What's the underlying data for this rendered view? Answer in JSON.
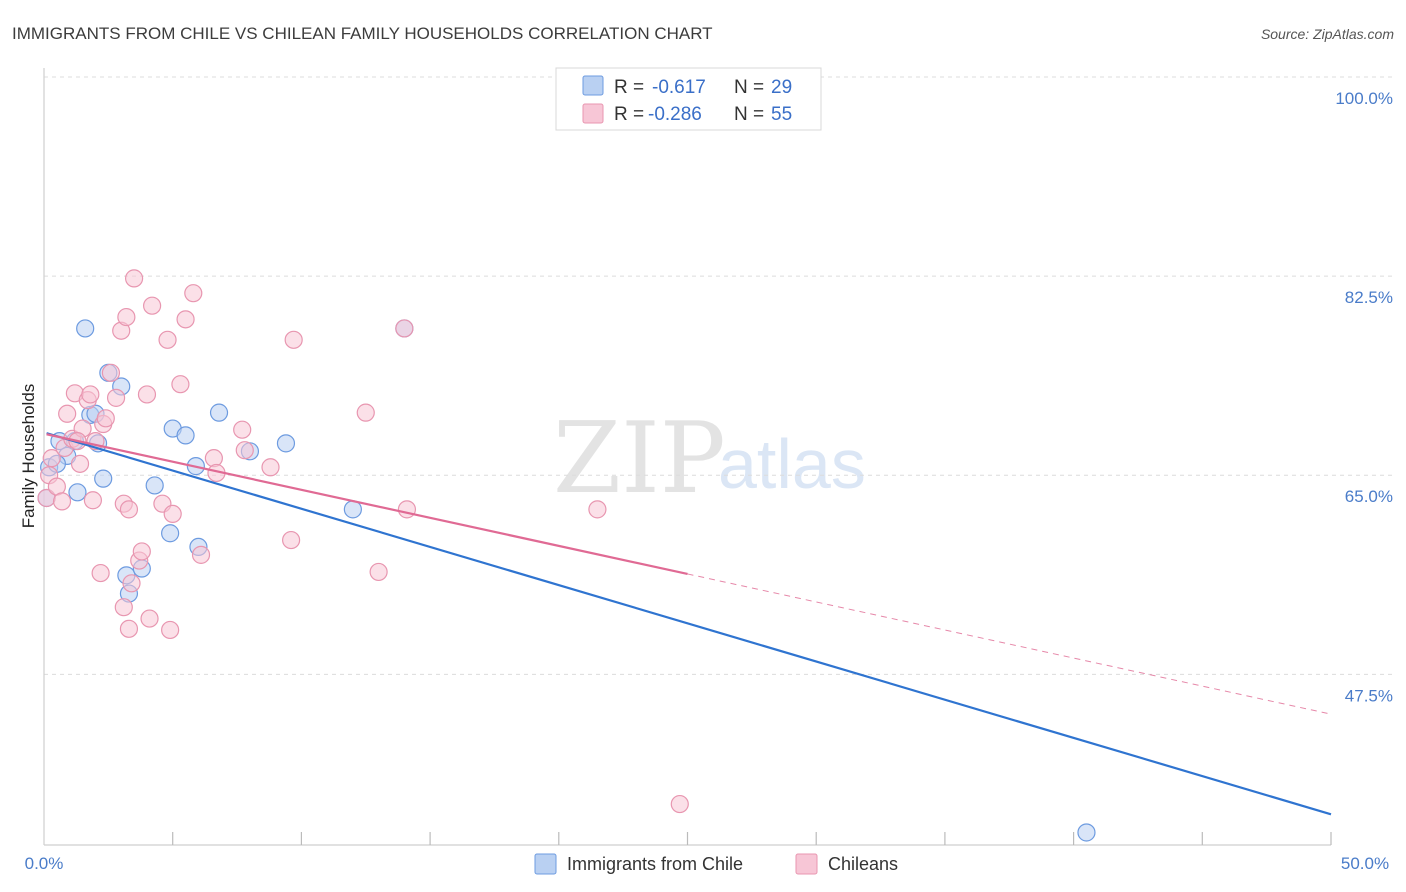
{
  "chart_data": {
    "type": "scatter",
    "title": "IMMIGRANTS FROM CHILE VS CHILEAN FAMILY HOUSEHOLDS CORRELATION CHART",
    "source": "Source: ZipAtlas.com",
    "xlabel": "",
    "ylabel": "Family Households",
    "xlim": [
      0,
      50
    ],
    "ylim": [
      32.5,
      100
    ],
    "x_tick_labels": [
      "0.0%",
      "50.0%"
    ],
    "y_ticks": [
      {
        "value": 100.0,
        "label": "100.0%"
      },
      {
        "value": 82.5,
        "label": "82.5%"
      },
      {
        "value": 65.0,
        "label": "65.0%"
      },
      {
        "value": 47.5,
        "label": "47.5%"
      }
    ],
    "watermark": {
      "zip": "ZIP",
      "atlas": "atlas"
    },
    "series": [
      {
        "name": "Immigrants from Chile",
        "color": "#6d9be0",
        "fill": "#b9d0f2",
        "line_color": "#2f74d0",
        "R_label": "R =",
        "R": "-0.617",
        "N_label": "N =",
        "N": "29",
        "trend": {
          "x0": 0.1,
          "y0": 68.7,
          "x1": 50.0,
          "y1": 35.2,
          "dash_from": null
        },
        "points": [
          [
            0.2,
            65.7
          ],
          [
            0.6,
            68.0
          ],
          [
            0.9,
            66.7
          ],
          [
            1.2,
            68.0
          ],
          [
            1.3,
            63.5
          ],
          [
            1.6,
            77.9
          ],
          [
            1.8,
            70.3
          ],
          [
            2.0,
            70.4
          ],
          [
            2.1,
            67.8
          ],
          [
            2.3,
            64.7
          ],
          [
            2.5,
            74.0
          ],
          [
            3.0,
            72.8
          ],
          [
            3.2,
            56.2
          ],
          [
            3.3,
            54.6
          ],
          [
            3.8,
            56.8
          ],
          [
            4.3,
            64.1
          ],
          [
            4.9,
            59.9
          ],
          [
            5.0,
            69.1
          ],
          [
            5.5,
            68.5
          ],
          [
            5.9,
            65.8
          ],
          [
            6.0,
            58.7
          ],
          [
            6.8,
            70.5
          ],
          [
            8.0,
            67.1
          ],
          [
            9.4,
            67.8
          ],
          [
            12.0,
            62.0
          ],
          [
            14.0,
            77.9
          ],
          [
            40.5,
            33.6
          ],
          [
            0.1,
            63.0
          ],
          [
            0.5,
            66.0
          ]
        ]
      },
      {
        "name": "Chileans",
        "color": "#e896b0",
        "fill": "#f7c6d6",
        "line_color": "#e06a94",
        "R_label": "R =",
        "R": "-0.286",
        "N_label": "N =",
        "N": "55",
        "trend": {
          "x0": 0.1,
          "y0": 68.6,
          "x1": 50.0,
          "y1": 44.0,
          "dash_from": 25.0
        },
        "points": [
          [
            0.1,
            63.0
          ],
          [
            0.2,
            65.0
          ],
          [
            0.3,
            66.5
          ],
          [
            0.5,
            64.0
          ],
          [
            0.8,
            67.4
          ],
          [
            0.9,
            70.4
          ],
          [
            1.1,
            68.2
          ],
          [
            1.2,
            72.2
          ],
          [
            1.4,
            66.0
          ],
          [
            1.5,
            69.1
          ],
          [
            1.7,
            71.6
          ],
          [
            1.8,
            72.1
          ],
          [
            1.9,
            62.8
          ],
          [
            2.0,
            68.0
          ],
          [
            2.2,
            56.4
          ],
          [
            2.3,
            69.5
          ],
          [
            2.6,
            74.0
          ],
          [
            2.8,
            71.8
          ],
          [
            3.0,
            77.7
          ],
          [
            3.1,
            62.5
          ],
          [
            3.3,
            62.0
          ],
          [
            3.1,
            53.4
          ],
          [
            3.2,
            78.9
          ],
          [
            3.3,
            51.5
          ],
          [
            3.4,
            55.5
          ],
          [
            3.5,
            82.3
          ],
          [
            3.7,
            57.5
          ],
          [
            3.8,
            58.3
          ],
          [
            4.0,
            72.1
          ],
          [
            4.1,
            52.4
          ],
          [
            4.2,
            79.9
          ],
          [
            4.6,
            62.5
          ],
          [
            4.8,
            76.9
          ],
          [
            4.9,
            51.4
          ],
          [
            5.0,
            61.6
          ],
          [
            5.3,
            73.0
          ],
          [
            5.5,
            78.7
          ],
          [
            5.8,
            81.0
          ],
          [
            6.1,
            58.0
          ],
          [
            6.6,
            66.5
          ],
          [
            6.7,
            65.2
          ],
          [
            7.7,
            69.0
          ],
          [
            7.8,
            67.2
          ],
          [
            8.8,
            65.7
          ],
          [
            9.6,
            59.3
          ],
          [
            9.7,
            76.9
          ],
          [
            12.5,
            70.5
          ],
          [
            13.0,
            56.5
          ],
          [
            14.0,
            77.9
          ],
          [
            14.1,
            62.0
          ],
          [
            21.5,
            62.0
          ],
          [
            24.7,
            36.1
          ],
          [
            1.3,
            68.0
          ],
          [
            2.4,
            70.0
          ],
          [
            0.7,
            62.7
          ]
        ]
      }
    ]
  }
}
